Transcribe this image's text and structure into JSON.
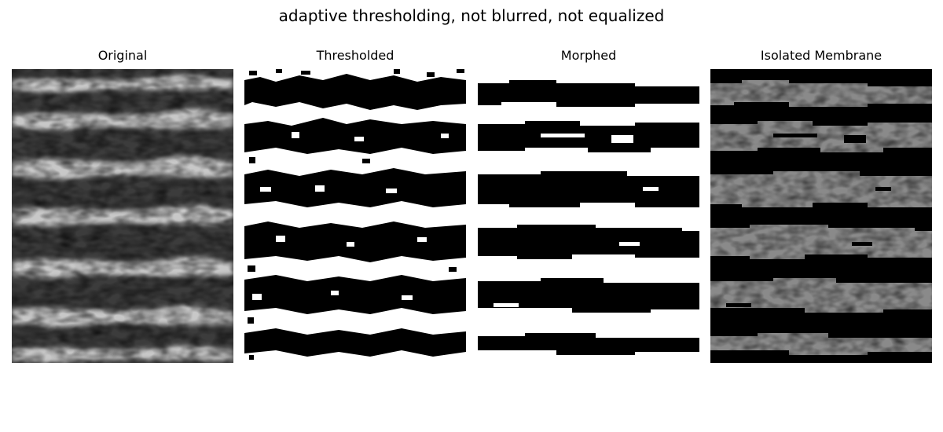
{
  "figure": {
    "title": "adaptive thresholding, not blurred, not equalized"
  },
  "panels": [
    {
      "title": "Original",
      "icon": "grayscale-micrograph-image"
    },
    {
      "title": "Thresholded",
      "icon": "binary-threshold-image"
    },
    {
      "title": "Morphed",
      "icon": "binary-morphed-image"
    },
    {
      "title": "Isolated Membrane",
      "icon": "masked-membrane-image"
    }
  ]
}
